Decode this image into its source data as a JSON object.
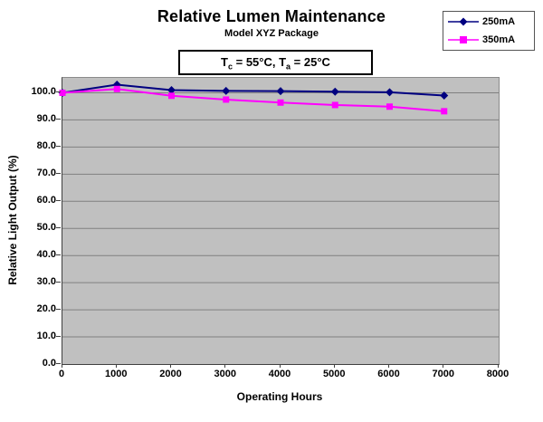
{
  "chart_data": {
    "type": "line",
    "title": "Relative Lumen Maintenance",
    "subtitle": "Model XYZ Package",
    "annotation": {
      "t1": "T",
      "s1": "c",
      "t2": " = 55°C, T",
      "s2": "a",
      "t3": " = 25°C"
    },
    "xlabel": "Operating Hours",
    "ylabel": "Relative Light Output (%)",
    "x": [
      0,
      1000,
      2000,
      3000,
      4000,
      5000,
      6000,
      7000
    ],
    "series": [
      {
        "name": "250mA",
        "color": "#000080",
        "marker": "diamond",
        "values": [
          100.0,
          103.0,
          101.0,
          100.7,
          100.6,
          100.4,
          100.2,
          99.0
        ]
      },
      {
        "name": "350mA",
        "color": "#FF00FF",
        "marker": "square",
        "values": [
          100.0,
          101.4,
          98.9,
          97.5,
          96.4,
          95.5,
          94.9,
          93.2
        ]
      }
    ],
    "xticks": [
      "0",
      "1000",
      "2000",
      "3000",
      "4000",
      "5000",
      "6000",
      "7000",
      "8000"
    ],
    "yticks": [
      "100.0",
      "90.0",
      "80.0",
      "70.0",
      "60.0",
      "50.0",
      "40.0",
      "30.0",
      "20.0",
      "10.0",
      "0.0"
    ],
    "ylim": [
      0,
      105.5
    ],
    "grid": "horizontal-only",
    "legend_position": "top-right",
    "colors": {
      "plot_bg": "#C0C0C0",
      "gridline": "#808080",
      "axis": "#404040"
    }
  }
}
